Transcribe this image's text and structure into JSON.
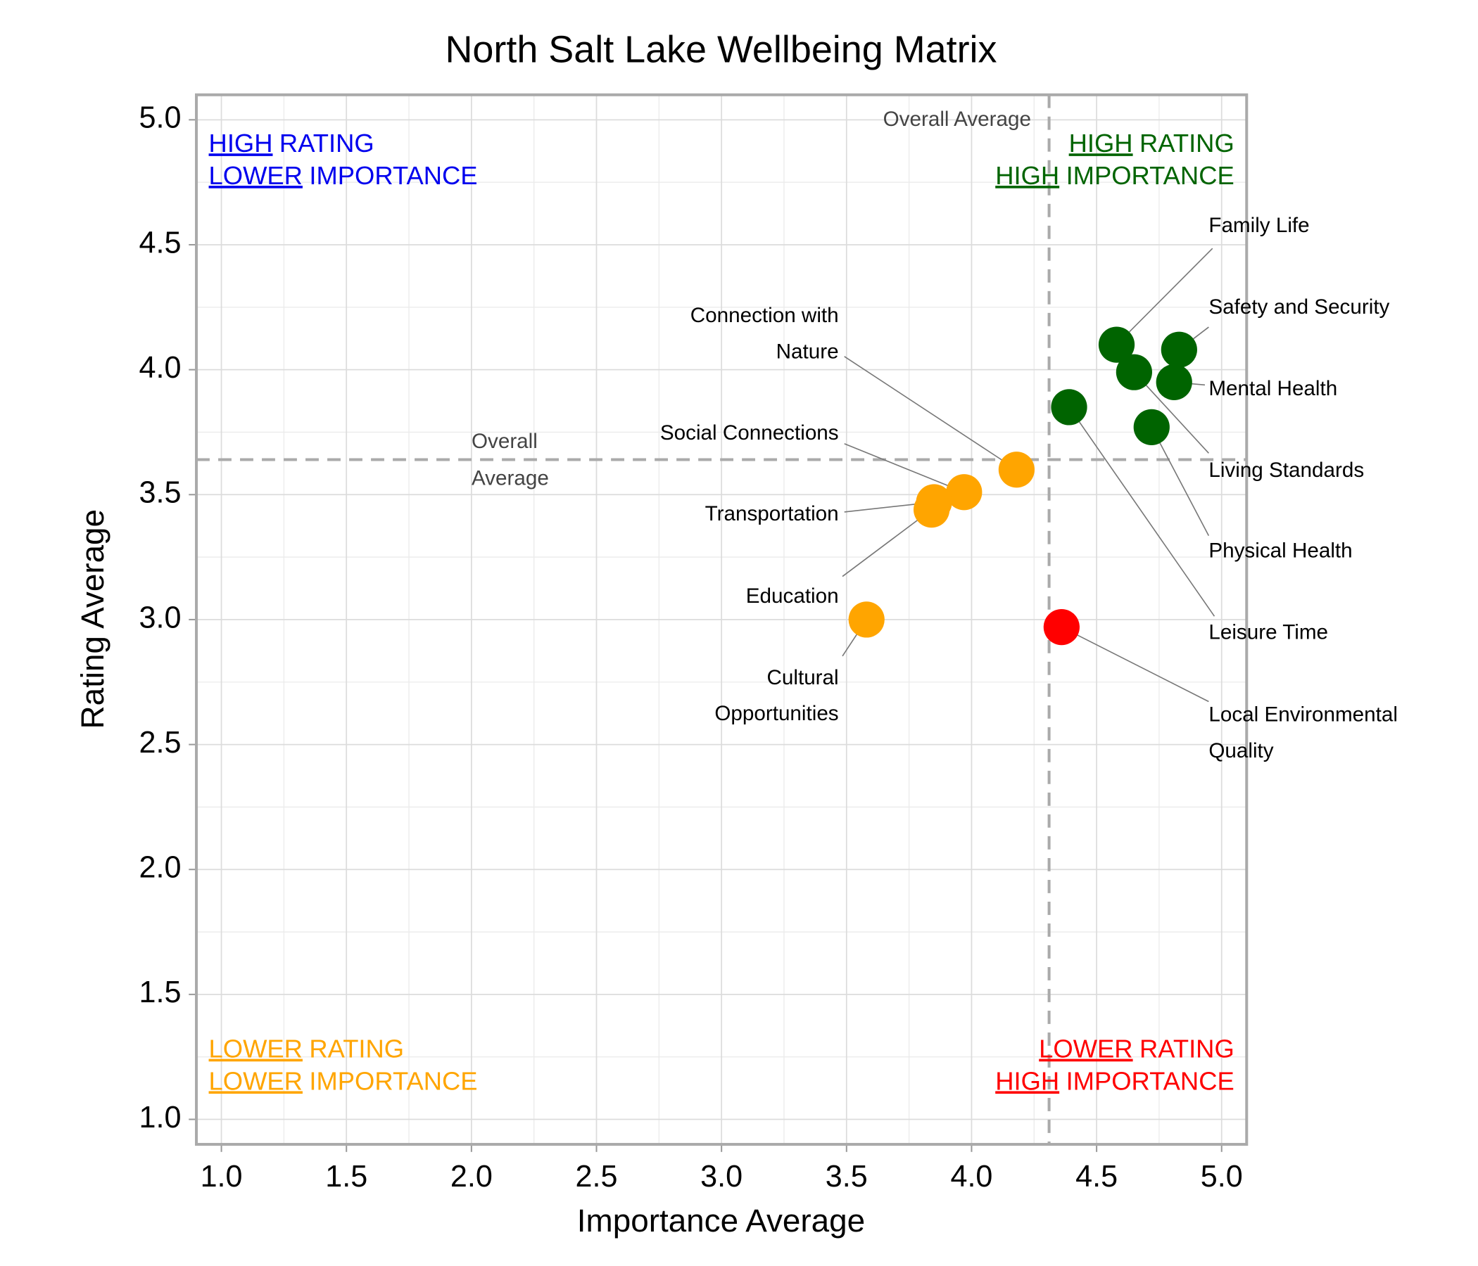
{
  "chart_data": {
    "type": "scatter",
    "title": "North Salt Lake Wellbeing Matrix",
    "x_label": "Importance Average",
    "y_label": "Rating Average",
    "xlim": [
      0.9,
      5.1
    ],
    "ylim": [
      0.9,
      5.1
    ],
    "xticks": [
      {
        "value": 1,
        "label": "1.0"
      },
      1.5,
      {
        "value": 2,
        "label": "2.0"
      },
      2.5,
      {
        "value": 3,
        "label": "3.0"
      },
      3.5,
      {
        "value": 4,
        "label": "4.0"
      },
      4.5,
      {
        "value": 5,
        "label": "5.0"
      }
    ],
    "yticks": [
      {
        "value": 1,
        "label": "1.0"
      },
      1.5,
      {
        "value": 2,
        "label": "2.0"
      },
      2.5,
      {
        "value": 3,
        "label": "3.0"
      },
      3.5,
      {
        "value": 4,
        "label": "4.0"
      },
      4.5,
      {
        "value": 5,
        "label": "5.0"
      }
    ],
    "minor_xticks": [
      1.25,
      1.75,
      2.25,
      2.75,
      3.25,
      3.75,
      4.25,
      4.75
    ],
    "minor_yticks": [
      1.25,
      1.75,
      2.25,
      2.75,
      3.25,
      3.75,
      4.25,
      4.75
    ],
    "grid": true,
    "averages": {
      "x": 4.31,
      "y": 3.64,
      "x_label": "Overall Average",
      "y_label": [
        "Overall",
        "Average"
      ]
    },
    "quadrants": [
      {
        "corner": "top-left",
        "color": "#0000ee",
        "lines": [
          [
            "HIGH",
            "RATING"
          ],
          [
            "LOWER",
            "IMPORTANCE"
          ]
        ]
      },
      {
        "corner": "top-right",
        "color": "#006400",
        "lines": [
          [
            "HIGH",
            "RATING"
          ],
          [
            "HIGH",
            "IMPORTANCE"
          ]
        ]
      },
      {
        "corner": "bottom-left",
        "color": "#ffa500",
        "lines": [
          [
            "LOWER",
            "RATING"
          ],
          [
            "LOWER",
            "IMPORTANCE"
          ]
        ]
      },
      {
        "corner": "bottom-right",
        "color": "#ff0000",
        "lines": [
          [
            "LOWER",
            "RATING"
          ],
          [
            "HIGH",
            "IMPORTANCE"
          ]
        ]
      }
    ],
    "points": [
      {
        "label": [
          "Family Life"
        ],
        "x": 4.58,
        "y": 4.1,
        "color": "#006400"
      },
      {
        "label": [
          "Safety and Security"
        ],
        "x": 4.83,
        "y": 4.08,
        "color": "#006400"
      },
      {
        "label": [
          "Mental Health"
        ],
        "x": 4.81,
        "y": 3.95,
        "color": "#006400"
      },
      {
        "label": [
          "Living Standards"
        ],
        "x": 4.65,
        "y": 3.99,
        "color": "#006400"
      },
      {
        "label": [
          "Physical Health"
        ],
        "x": 4.72,
        "y": 3.77,
        "color": "#006400"
      },
      {
        "label": [
          "Leisure Time"
        ],
        "x": 4.39,
        "y": 3.85,
        "color": "#006400"
      },
      {
        "label": [
          "Local Environmental",
          "Quality"
        ],
        "x": 4.36,
        "y": 2.97,
        "color": "#ff0000"
      },
      {
        "label": [
          "Connection with",
          "Nature"
        ],
        "x": 4.18,
        "y": 3.6,
        "color": "#ffa500"
      },
      {
        "label": [
          "Social Connections"
        ],
        "x": 3.97,
        "y": 3.51,
        "color": "#ffa500"
      },
      {
        "label": [
          "Transportation"
        ],
        "x": 3.85,
        "y": 3.47,
        "color": "#ffa500"
      },
      {
        "label": [
          "Education"
        ],
        "x": 3.84,
        "y": 3.44,
        "color": "#ffa500"
      },
      {
        "label": [
          "Cultural",
          "Opportunities"
        ],
        "x": 3.58,
        "y": 3.0,
        "color": "#ffa500"
      }
    ]
  }
}
